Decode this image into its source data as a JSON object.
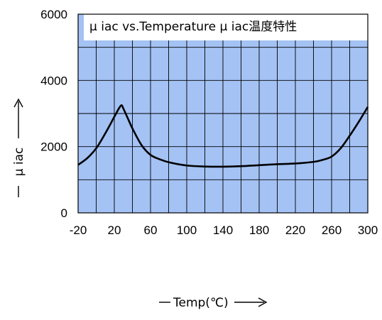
{
  "chart_data": {
    "type": "line",
    "title": "μ iac vs.Temperature   μ iac温度特性",
    "xlabel": "Temp(℃)",
    "ylabel": "μ iac",
    "xlim": [
      -20,
      300
    ],
    "ylim": [
      0,
      6000
    ],
    "x_ticks": [
      "-20",
      "20",
      "60",
      "100",
      "140",
      "180",
      "220",
      "260",
      "300"
    ],
    "y_ticks": [
      "0",
      "2000",
      "4000",
      "6000"
    ],
    "grid": true,
    "plot_background": "#a4c2f4",
    "line_color": "#000000",
    "series": [
      {
        "x": [
          -20,
          -10,
          0,
          10,
          20,
          25,
          28,
          30,
          35,
          40,
          50,
          60,
          70,
          80,
          100,
          120,
          140,
          160,
          180,
          200,
          220,
          240,
          250,
          260,
          270,
          280,
          290,
          300
        ],
        "values": [
          1450,
          1650,
          1950,
          2400,
          2900,
          3150,
          3250,
          3150,
          2850,
          2550,
          2050,
          1750,
          1620,
          1530,
          1430,
          1400,
          1395,
          1410,
          1440,
          1470,
          1490,
          1540,
          1600,
          1700,
          1950,
          2330,
          2750,
          3200
        ]
      }
    ]
  }
}
